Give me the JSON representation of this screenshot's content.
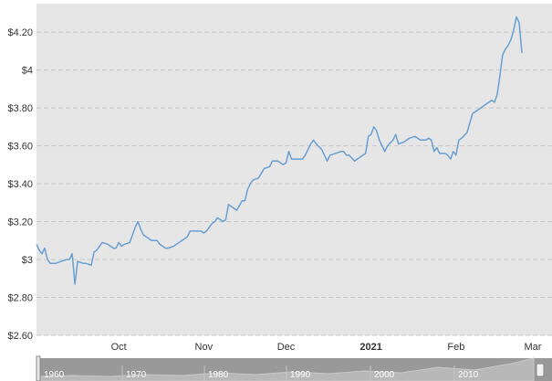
{
  "chart_data": {
    "type": "line",
    "title": "",
    "xlabel": "",
    "ylabel": "",
    "ylim": [
      2.6,
      4.35
    ],
    "xlim": [
      "2020-09-01",
      "2021-03-01"
    ],
    "y_scale": "linear",
    "grid": true,
    "colors": {
      "plot_bg": "#e6e6e6",
      "line": "#6a9fd4",
      "grid": "#c8c8c8",
      "navigator_bg": "#999999"
    },
    "y_ticks": [
      {
        "value": 4.2,
        "label": "$4.20"
      },
      {
        "value": 4.0,
        "label": "$4"
      },
      {
        "value": 3.8,
        "label": "$3.80"
      },
      {
        "value": 3.6,
        "label": "$3.60"
      },
      {
        "value": 3.4,
        "label": "$3.40"
      },
      {
        "value": 3.2,
        "label": "$3.20"
      },
      {
        "value": 3.0,
        "label": "$3"
      },
      {
        "value": 2.8,
        "label": "$2.80"
      },
      {
        "value": 2.6,
        "label": "$2.60"
      }
    ],
    "x_ticks": [
      {
        "date": "2020-10-01",
        "label": "Oct",
        "bold": false
      },
      {
        "date": "2020-11-01",
        "label": "Nov",
        "bold": false
      },
      {
        "date": "2020-12-01",
        "label": "Dec",
        "bold": false
      },
      {
        "date": "2021-01-01",
        "label": "2021",
        "bold": true
      },
      {
        "date": "2021-02-01",
        "label": "Feb",
        "bold": false
      },
      {
        "date": "2021-03-01",
        "label": "Mar",
        "bold": false
      }
    ],
    "series": [
      {
        "points": [
          [
            "2020-09-01",
            3.08
          ],
          [
            "2020-09-02",
            3.05
          ],
          [
            "2020-09-03",
            3.03
          ],
          [
            "2020-09-04",
            3.06
          ],
          [
            "2020-09-05",
            3.0
          ],
          [
            "2020-09-06",
            2.98
          ],
          [
            "2020-09-08",
            2.98
          ],
          [
            "2020-09-10",
            2.99
          ],
          [
            "2020-09-12",
            3.0
          ],
          [
            "2020-09-13",
            3.0
          ],
          [
            "2020-09-14",
            3.03
          ],
          [
            "2020-09-15",
            2.87
          ],
          [
            "2020-09-16",
            2.99
          ],
          [
            "2020-09-18",
            2.98
          ],
          [
            "2020-09-19",
            2.98
          ],
          [
            "2020-09-21",
            2.97
          ],
          [
            "2020-09-22",
            3.04
          ],
          [
            "2020-09-23",
            3.05
          ],
          [
            "2020-09-25",
            3.09
          ],
          [
            "2020-09-27",
            3.08
          ],
          [
            "2020-09-29",
            3.06
          ],
          [
            "2020-09-30",
            3.06
          ],
          [
            "2020-10-01",
            3.09
          ],
          [
            "2020-10-02",
            3.07
          ],
          [
            "2020-10-03",
            3.08
          ],
          [
            "2020-10-05",
            3.09
          ],
          [
            "2020-10-07",
            3.17
          ],
          [
            "2020-10-08",
            3.2
          ],
          [
            "2020-10-09",
            3.16
          ],
          [
            "2020-10-10",
            3.13
          ],
          [
            "2020-10-12",
            3.11
          ],
          [
            "2020-10-13",
            3.1
          ],
          [
            "2020-10-15",
            3.1
          ],
          [
            "2020-10-16",
            3.08
          ],
          [
            "2020-10-18",
            3.06
          ],
          [
            "2020-10-19",
            3.06
          ],
          [
            "2020-10-21",
            3.07
          ],
          [
            "2020-10-22",
            3.08
          ],
          [
            "2020-10-24",
            3.1
          ],
          [
            "2020-10-25",
            3.11
          ],
          [
            "2020-10-26",
            3.12
          ],
          [
            "2020-10-27",
            3.15
          ],
          [
            "2020-10-29",
            3.15
          ],
          [
            "2020-10-31",
            3.15
          ],
          [
            "2020-11-01",
            3.14
          ],
          [
            "2020-11-02",
            3.15
          ],
          [
            "2020-11-04",
            3.19
          ],
          [
            "2020-11-05",
            3.2
          ],
          [
            "2020-11-06",
            3.22
          ],
          [
            "2020-11-08",
            3.2
          ],
          [
            "2020-11-09",
            3.21
          ],
          [
            "2020-11-10",
            3.29
          ],
          [
            "2020-11-11",
            3.28
          ],
          [
            "2020-11-13",
            3.26
          ],
          [
            "2020-11-15",
            3.31
          ],
          [
            "2020-11-16",
            3.31
          ],
          [
            "2020-11-17",
            3.37
          ],
          [
            "2020-11-18",
            3.4
          ],
          [
            "2020-11-19",
            3.42
          ],
          [
            "2020-11-21",
            3.43
          ],
          [
            "2020-11-23",
            3.48
          ],
          [
            "2020-11-25",
            3.49
          ],
          [
            "2020-11-26",
            3.52
          ],
          [
            "2020-11-28",
            3.52
          ],
          [
            "2020-11-29",
            3.51
          ],
          [
            "2020-11-30",
            3.5
          ],
          [
            "2020-12-01",
            3.51
          ],
          [
            "2020-12-02",
            3.57
          ],
          [
            "2020-12-03",
            3.53
          ],
          [
            "2020-12-05",
            3.53
          ],
          [
            "2020-12-07",
            3.53
          ],
          [
            "2020-12-08",
            3.55
          ],
          [
            "2020-12-10",
            3.61
          ],
          [
            "2020-12-11",
            3.63
          ],
          [
            "2020-12-12",
            3.61
          ],
          [
            "2020-12-14",
            3.58
          ],
          [
            "2020-12-16",
            3.52
          ],
          [
            "2020-12-17",
            3.55
          ],
          [
            "2020-12-19",
            3.56
          ],
          [
            "2020-12-21",
            3.57
          ],
          [
            "2020-12-22",
            3.57
          ],
          [
            "2020-12-23",
            3.55
          ],
          [
            "2020-12-24",
            3.55
          ],
          [
            "2020-12-26",
            3.52
          ],
          [
            "2020-12-27",
            3.53
          ],
          [
            "2020-12-29",
            3.55
          ],
          [
            "2020-12-30",
            3.56
          ],
          [
            "2020-12-31",
            3.65
          ],
          [
            "2021-01-01",
            3.66
          ],
          [
            "2021-01-02",
            3.7
          ],
          [
            "2021-01-03",
            3.68
          ],
          [
            "2021-01-04",
            3.63
          ],
          [
            "2021-01-06",
            3.57
          ],
          [
            "2021-01-07",
            3.6
          ],
          [
            "2021-01-09",
            3.63
          ],
          [
            "2021-01-10",
            3.66
          ],
          [
            "2021-01-11",
            3.61
          ],
          [
            "2021-01-13",
            3.62
          ],
          [
            "2021-01-15",
            3.64
          ],
          [
            "2021-01-17",
            3.65
          ],
          [
            "2021-01-18",
            3.64
          ],
          [
            "2021-01-19",
            3.63
          ],
          [
            "2021-01-21",
            3.63
          ],
          [
            "2021-01-22",
            3.64
          ],
          [
            "2021-01-23",
            3.63
          ],
          [
            "2021-01-24",
            3.57
          ],
          [
            "2021-01-25",
            3.59
          ],
          [
            "2021-01-26",
            3.56
          ],
          [
            "2021-01-28",
            3.56
          ],
          [
            "2021-01-29",
            3.55
          ],
          [
            "2021-01-30",
            3.53
          ],
          [
            "2021-01-31",
            3.57
          ],
          [
            "2021-02-01",
            3.55
          ],
          [
            "2021-02-02",
            3.63
          ],
          [
            "2021-02-03",
            3.64
          ],
          [
            "2021-02-05",
            3.67
          ],
          [
            "2021-02-07",
            3.77
          ],
          [
            "2021-02-09",
            3.79
          ],
          [
            "2021-02-10",
            3.8
          ],
          [
            "2021-02-12",
            3.82
          ],
          [
            "2021-02-13",
            3.83
          ],
          [
            "2021-02-14",
            3.84
          ],
          [
            "2021-02-15",
            3.83
          ],
          [
            "2021-02-16",
            3.87
          ],
          [
            "2021-02-17",
            3.97
          ],
          [
            "2021-02-18",
            4.08
          ],
          [
            "2021-02-19",
            4.11
          ],
          [
            "2021-02-20",
            4.13
          ],
          [
            "2021-02-21",
            4.16
          ],
          [
            "2021-02-22",
            4.21
          ],
          [
            "2021-02-23",
            4.28
          ],
          [
            "2021-02-24",
            4.25
          ],
          [
            "2021-02-25",
            4.09
          ]
        ]
      }
    ]
  },
  "navigator": {
    "labels": [
      "1960",
      "1970",
      "1980",
      "1990",
      "2000",
      "2010"
    ]
  }
}
